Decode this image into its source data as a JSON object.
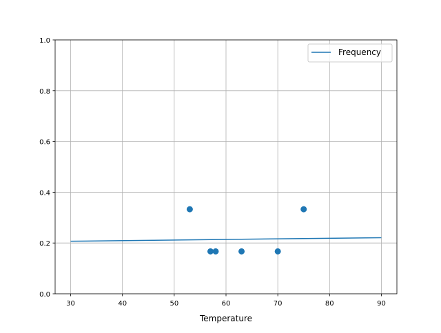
{
  "chart_data": {
    "type": "scatter",
    "xlabel": "Temperature",
    "ylabel": "",
    "title": "",
    "xlim": [
      27,
      93
    ],
    "ylim": [
      0,
      1.0
    ],
    "xticks": [
      "30",
      "40",
      "50",
      "60",
      "70",
      "80",
      "90"
    ],
    "yticks": [
      "0.0",
      "0.2",
      "0.4",
      "0.6",
      "0.8",
      "1.0"
    ],
    "grid": true,
    "legend": {
      "placement": "top-right",
      "entries": [
        "Frequency"
      ]
    },
    "color": "#1f77b4",
    "scatter": {
      "x": [
        53,
        57,
        58,
        63,
        70,
        75
      ],
      "y": [
        0.333,
        0.167,
        0.167,
        0.167,
        0.167,
        0.333
      ]
    },
    "series": [
      {
        "name": "Frequency",
        "type": "line",
        "x": [
          30,
          90
        ],
        "y": [
          0.207,
          0.221
        ]
      }
    ]
  }
}
